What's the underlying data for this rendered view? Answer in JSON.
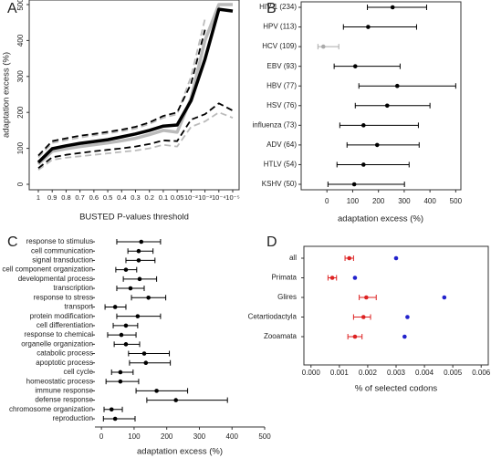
{
  "chart_data": [
    {
      "type": "line",
      "label": "A",
      "y_label": "adaptation excess (%)",
      "x_label": "BUSTED P-values threshold",
      "categories": [
        "1",
        "0.9",
        "0.8",
        "0.7",
        "0.6",
        "0.5",
        "0.4",
        "0.3",
        "0.2",
        "0.1",
        "0.05",
        "10⁻²",
        "10⁻³",
        "10⁻⁴",
        "10⁻⁵"
      ],
      "ylim": [
        0,
        500
      ],
      "yticks": [
        0,
        100,
        200,
        300,
        400,
        500
      ],
      "series": [
        {
          "color": "#bbbbbb",
          "linestyle": "dashed",
          "linewidth": 1.8,
          "values": [
            75,
            115,
            123,
            130,
            136,
            142,
            148,
            155,
            168,
            185,
            195,
            300,
            460,
            null,
            null
          ]
        },
        {
          "color": "#bbbbbb",
          "linestyle": "dashed",
          "linewidth": 1.8,
          "values": [
            40,
            68,
            74,
            78,
            82,
            86,
            90,
            94,
            100,
            110,
            105,
            160,
            175,
            200,
            185
          ]
        },
        {
          "color": "#bbbbbb",
          "linestyle": "solid",
          "linewidth": 3.5,
          "values": [
            56,
            92,
            99,
            105,
            110,
            115,
            121,
            128,
            138,
            150,
            145,
            240,
            400,
            500,
            500
          ]
        },
        {
          "color": "#000000",
          "linestyle": "dashed",
          "linewidth": 1.8,
          "values": [
            80,
            120,
            128,
            135,
            140,
            146,
            152,
            160,
            172,
            190,
            200,
            280,
            430,
            null,
            null
          ]
        },
        {
          "color": "#000000",
          "linestyle": "dashed",
          "linewidth": 1.8,
          "values": [
            45,
            75,
            82,
            87,
            92,
            96,
            100,
            105,
            112,
            122,
            120,
            180,
            195,
            225,
            205
          ]
        },
        {
          "color": "#000000",
          "linestyle": "solid",
          "linewidth": 3.5,
          "values": [
            61,
            99,
            107,
            114,
            119,
            124,
            132,
            140,
            150,
            162,
            165,
            233,
            348,
            487,
            482
          ]
        }
      ]
    },
    {
      "type": "errorbar",
      "label": "B",
      "x_label": "adaptation excess (%)",
      "box": true,
      "categories": [
        "HIV-1 (234)",
        "HPV (113)",
        "HCV (109)",
        "EBV (93)",
        "HBV (77)",
        "HSV (76)",
        "influenza (73)",
        "ADV (64)",
        "HTLV (54)",
        "KSHV (50)"
      ],
      "xlim": [
        -100,
        520
      ],
      "xticks": [
        0,
        100,
        200,
        300,
        400,
        500
      ],
      "series": [
        {
          "colors": [
            "#000000",
            "#000000",
            "#aaaaaa",
            "#000000",
            "#000000",
            "#000000",
            "#000000",
            "#000000",
            "#000000",
            "#000000"
          ],
          "values": [
            255,
            160,
            -14,
            110,
            273,
            234,
            142,
            195,
            142,
            106
          ],
          "lower": [
            157,
            64,
            -35,
            28,
            124,
            110,
            50,
            78,
            39,
            4
          ],
          "upper": [
            387,
            348,
            46,
            284,
            500,
            400,
            355,
            358,
            319,
            301
          ]
        }
      ]
    },
    {
      "type": "errorbar",
      "label": "C",
      "x_label": "adaptation excess (%)",
      "box": false,
      "categories": [
        "response to stimulus",
        "cell communication",
        "signal transduction",
        "cell component organization",
        "developmental process",
        "transcription",
        "response to stress",
        "transport",
        "protein modification",
        "cell differentiation",
        "response to chemical",
        "organelle organization",
        "catabolic process",
        "apoptotic process",
        "cell cycle",
        "homeostatic process",
        "immune response",
        "defense response",
        "chromosome organization",
        "reproduction"
      ],
      "xlim": [
        -20,
        500
      ],
      "xticks": [
        0,
        100,
        200,
        300,
        400,
        500
      ],
      "series": [
        {
          "color": "#000000",
          "values": [
            122,
            114,
            114,
            75,
            117,
            89,
            144,
            42,
            111,
            75,
            61,
            75,
            131,
            136,
            58,
            58,
            169,
            228,
            31,
            42
          ],
          "lower": [
            47,
            81,
            75,
            44,
            67,
            47,
            92,
            11,
            47,
            36,
            19,
            39,
            83,
            86,
            31,
            14,
            106,
            139,
            8,
            6
          ],
          "upper": [
            181,
            158,
            164,
            108,
            169,
            131,
            197,
            75,
            181,
            111,
            106,
            117,
            208,
            211,
            97,
            114,
            264,
            386,
            64,
            103
          ]
        }
      ]
    },
    {
      "type": "errorbar",
      "label": "D",
      "x_label": "% of selected codons",
      "box": true,
      "categories": [
        "all",
        "Primata",
        "Glires",
        "Cetartiodactyla",
        "Zooamata"
      ],
      "xlim": [
        -0.00025,
        0.00625
      ],
      "xticks": [
        {
          "value": 0,
          "label": "0.000"
        },
        {
          "value": 0.001,
          "label": "0.001"
        },
        {
          "value": 0.002,
          "label": "0.002"
        },
        {
          "value": 0.003,
          "label": "0.003"
        },
        {
          "value": 0.004,
          "label": "0.004"
        },
        {
          "value": 0.005,
          "label": "0.005"
        },
        {
          "value": 0.006,
          "label": "0.006"
        }
      ],
      "series": [
        {
          "color": "#dd2222",
          "values": [
            0.00135,
            0.00075,
            0.00195,
            0.00185,
            0.00155
          ],
          "lower": [
            0.0012,
            0.0006,
            0.0017,
            0.0015,
            0.0013
          ],
          "upper": [
            0.0015,
            0.0009,
            0.0023,
            0.0021,
            0.0018
          ]
        },
        {
          "color": "#2222cc",
          "values": [
            0.003,
            0.00155,
            0.0047,
            0.0034,
            0.0033
          ]
        }
      ]
    }
  ]
}
